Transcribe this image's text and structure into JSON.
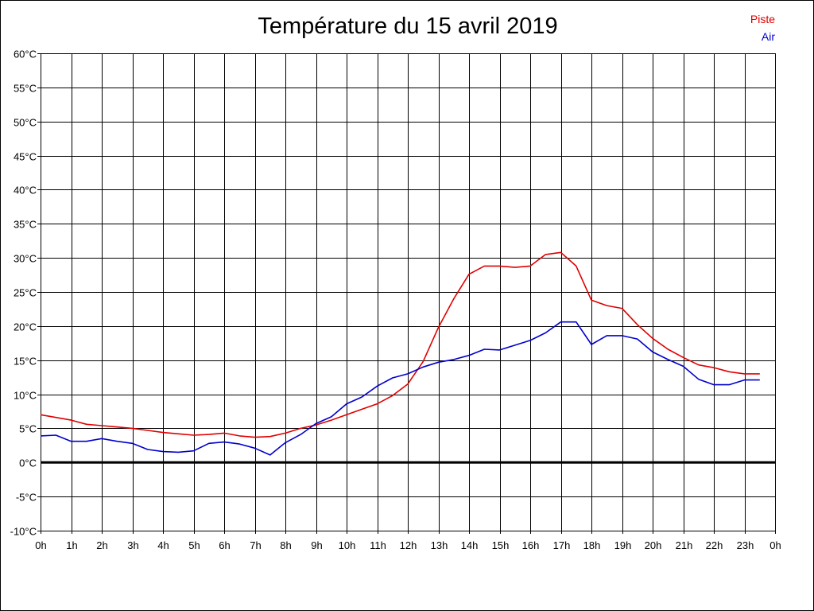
{
  "chart_data": {
    "type": "line",
    "title": "Température du 15 avril 2019",
    "xlabel": "",
    "ylabel": "",
    "x_ticks": [
      "0h",
      "1h",
      "2h",
      "3h",
      "4h",
      "5h",
      "6h",
      "7h",
      "8h",
      "9h",
      "10h",
      "11h",
      "12h",
      "13h",
      "14h",
      "15h",
      "16h",
      "17h",
      "18h",
      "19h",
      "20h",
      "21h",
      "22h",
      "23h",
      "0h"
    ],
    "y_ticks": [
      "60°C",
      "55°C",
      "50°C",
      "45°C",
      "40°C",
      "35°C",
      "30°C",
      "25°C",
      "20°C",
      "15°C",
      "10°C",
      "5°C",
      "0°C",
      "-5°C",
      "-10°C"
    ],
    "xlim": [
      0,
      24
    ],
    "ylim": [
      -10,
      60
    ],
    "grid": true,
    "zero_line": true,
    "legend_position": "top-right",
    "x": [
      0,
      0.5,
      1,
      1.5,
      2,
      2.5,
      3,
      3.5,
      4,
      4.5,
      5,
      5.5,
      6,
      6.5,
      7,
      7.5,
      8,
      8.5,
      9,
      9.5,
      10,
      10.5,
      11,
      11.5,
      12,
      12.5,
      13,
      13.5,
      14,
      14.5,
      15,
      15.5,
      16,
      16.5,
      17,
      17.5,
      18,
      18.5,
      19,
      19.5,
      20,
      20.5,
      21,
      21.5,
      22,
      22.5,
      23,
      23.5
    ],
    "series": [
      {
        "name": "Piste",
        "color": "#e00000",
        "values": [
          7.0,
          6.6,
          6.2,
          5.6,
          5.4,
          5.2,
          5.0,
          4.7,
          4.4,
          4.2,
          4.0,
          4.1,
          4.3,
          3.9,
          3.7,
          3.8,
          4.3,
          5.0,
          5.5,
          6.2,
          7.0,
          7.8,
          8.6,
          9.8,
          11.5,
          14.8,
          19.8,
          24.0,
          27.6,
          28.8,
          28.8,
          28.6,
          28.8,
          30.5,
          30.8,
          28.8,
          23.8,
          23.0,
          22.6,
          20.2,
          18.2,
          16.6,
          15.4,
          14.3,
          13.9,
          13.3,
          13.0,
          13.0
        ]
      },
      {
        "name": "Air",
        "color": "#0000cc",
        "values": [
          3.9,
          4.0,
          3.1,
          3.1,
          3.5,
          3.1,
          2.8,
          1.9,
          1.6,
          1.5,
          1.7,
          2.8,
          3.0,
          2.7,
          2.1,
          1.1,
          2.9,
          4.1,
          5.7,
          6.7,
          8.6,
          9.6,
          11.2,
          12.4,
          13.0,
          14.0,
          14.7,
          15.1,
          15.7,
          16.6,
          16.5,
          17.2,
          17.9,
          19.0,
          20.6,
          20.6,
          17.3,
          18.6,
          18.6,
          18.1,
          16.2,
          15.1,
          14.1,
          12.2,
          11.4,
          11.4,
          12.1,
          12.1
        ]
      }
    ]
  }
}
